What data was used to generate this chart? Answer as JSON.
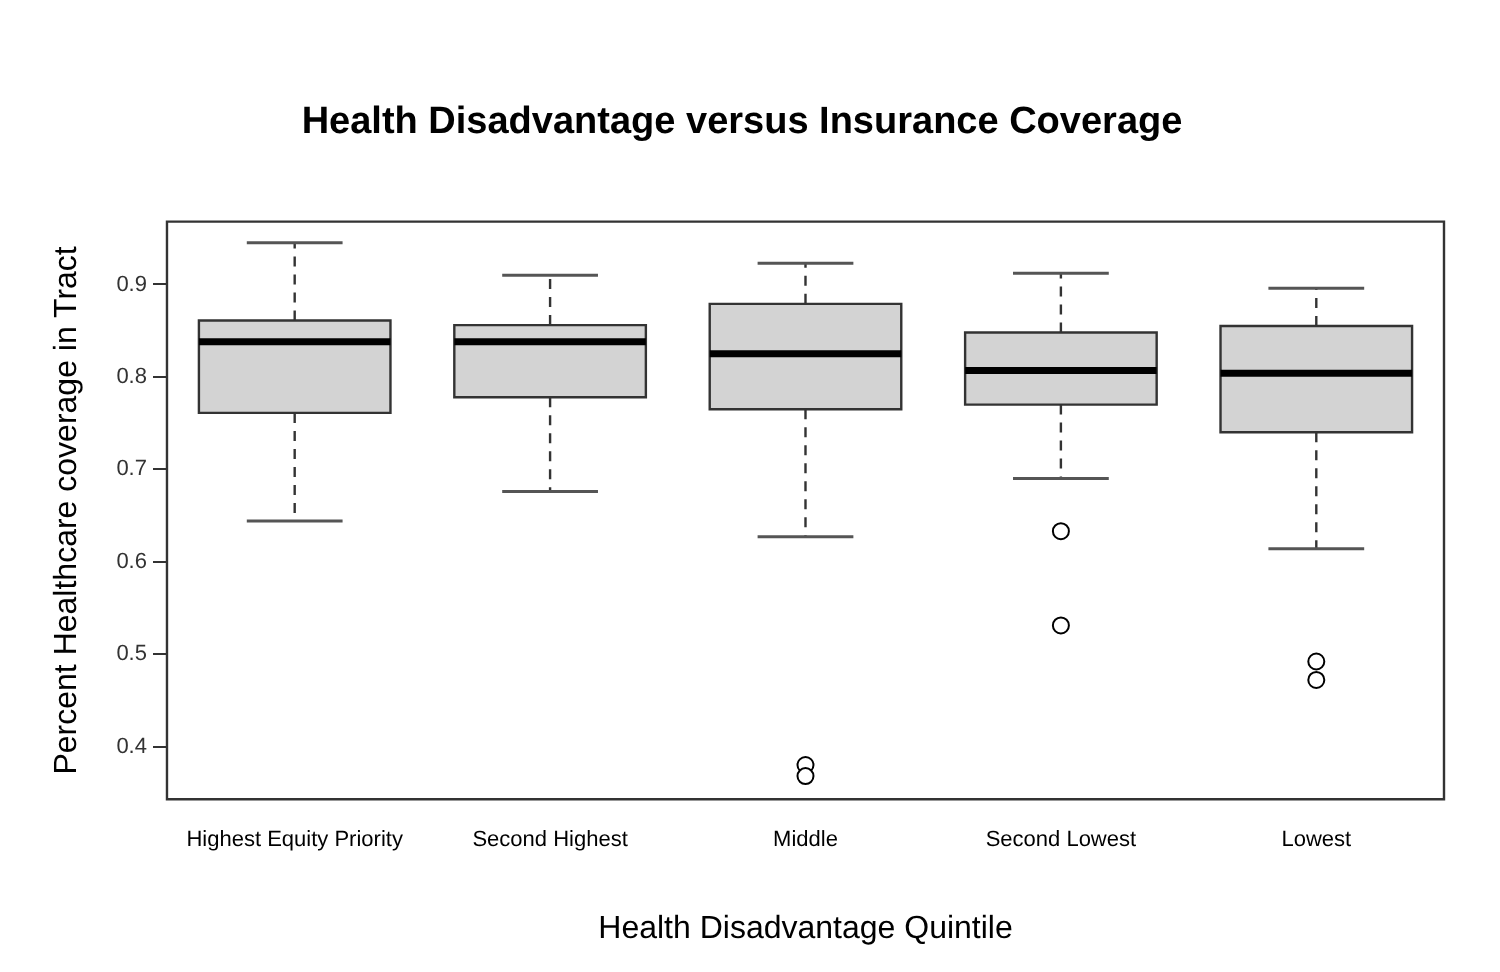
{
  "chart_data": {
    "type": "box",
    "title": "Health Disadvantage versus Insurance Coverage",
    "xlabel": "Health Disadvantage Quintile",
    "ylabel": "Percent Healthcare coverage in Tract",
    "categories": [
      "Highest Equity Priority",
      "Second Highest",
      "Middle",
      "Second Lowest",
      "Lowest"
    ],
    "color": "#d3d3d3",
    "boxes": [
      {
        "low": 0.644,
        "q1": 0.761,
        "median": 0.838,
        "q3": 0.861,
        "high": 0.945
      },
      {
        "low": 0.676,
        "q1": 0.778,
        "median": 0.838,
        "q3": 0.856,
        "high": 0.91
      },
      {
        "low": 0.627,
        "q1": 0.765,
        "median": 0.825,
        "q3": 0.879,
        "high": 0.923,
        "outliers": [
          0.38,
          0.368
        ]
      },
      {
        "low": 0.69,
        "q1": 0.77,
        "median": 0.807,
        "q3": 0.848,
        "high": 0.912,
        "outliers": [
          0.633,
          0.531
        ]
      },
      {
        "low": 0.614,
        "q1": 0.74,
        "median": 0.804,
        "q3": 0.855,
        "high": 0.896,
        "outliers": [
          0.492,
          0.472
        ]
      }
    ],
    "ylim": [
      0.343,
      0.968
    ],
    "yticks": [
      0.4,
      0.5,
      0.6,
      0.7,
      0.8,
      0.9
    ],
    "grid": false,
    "legend": false
  }
}
